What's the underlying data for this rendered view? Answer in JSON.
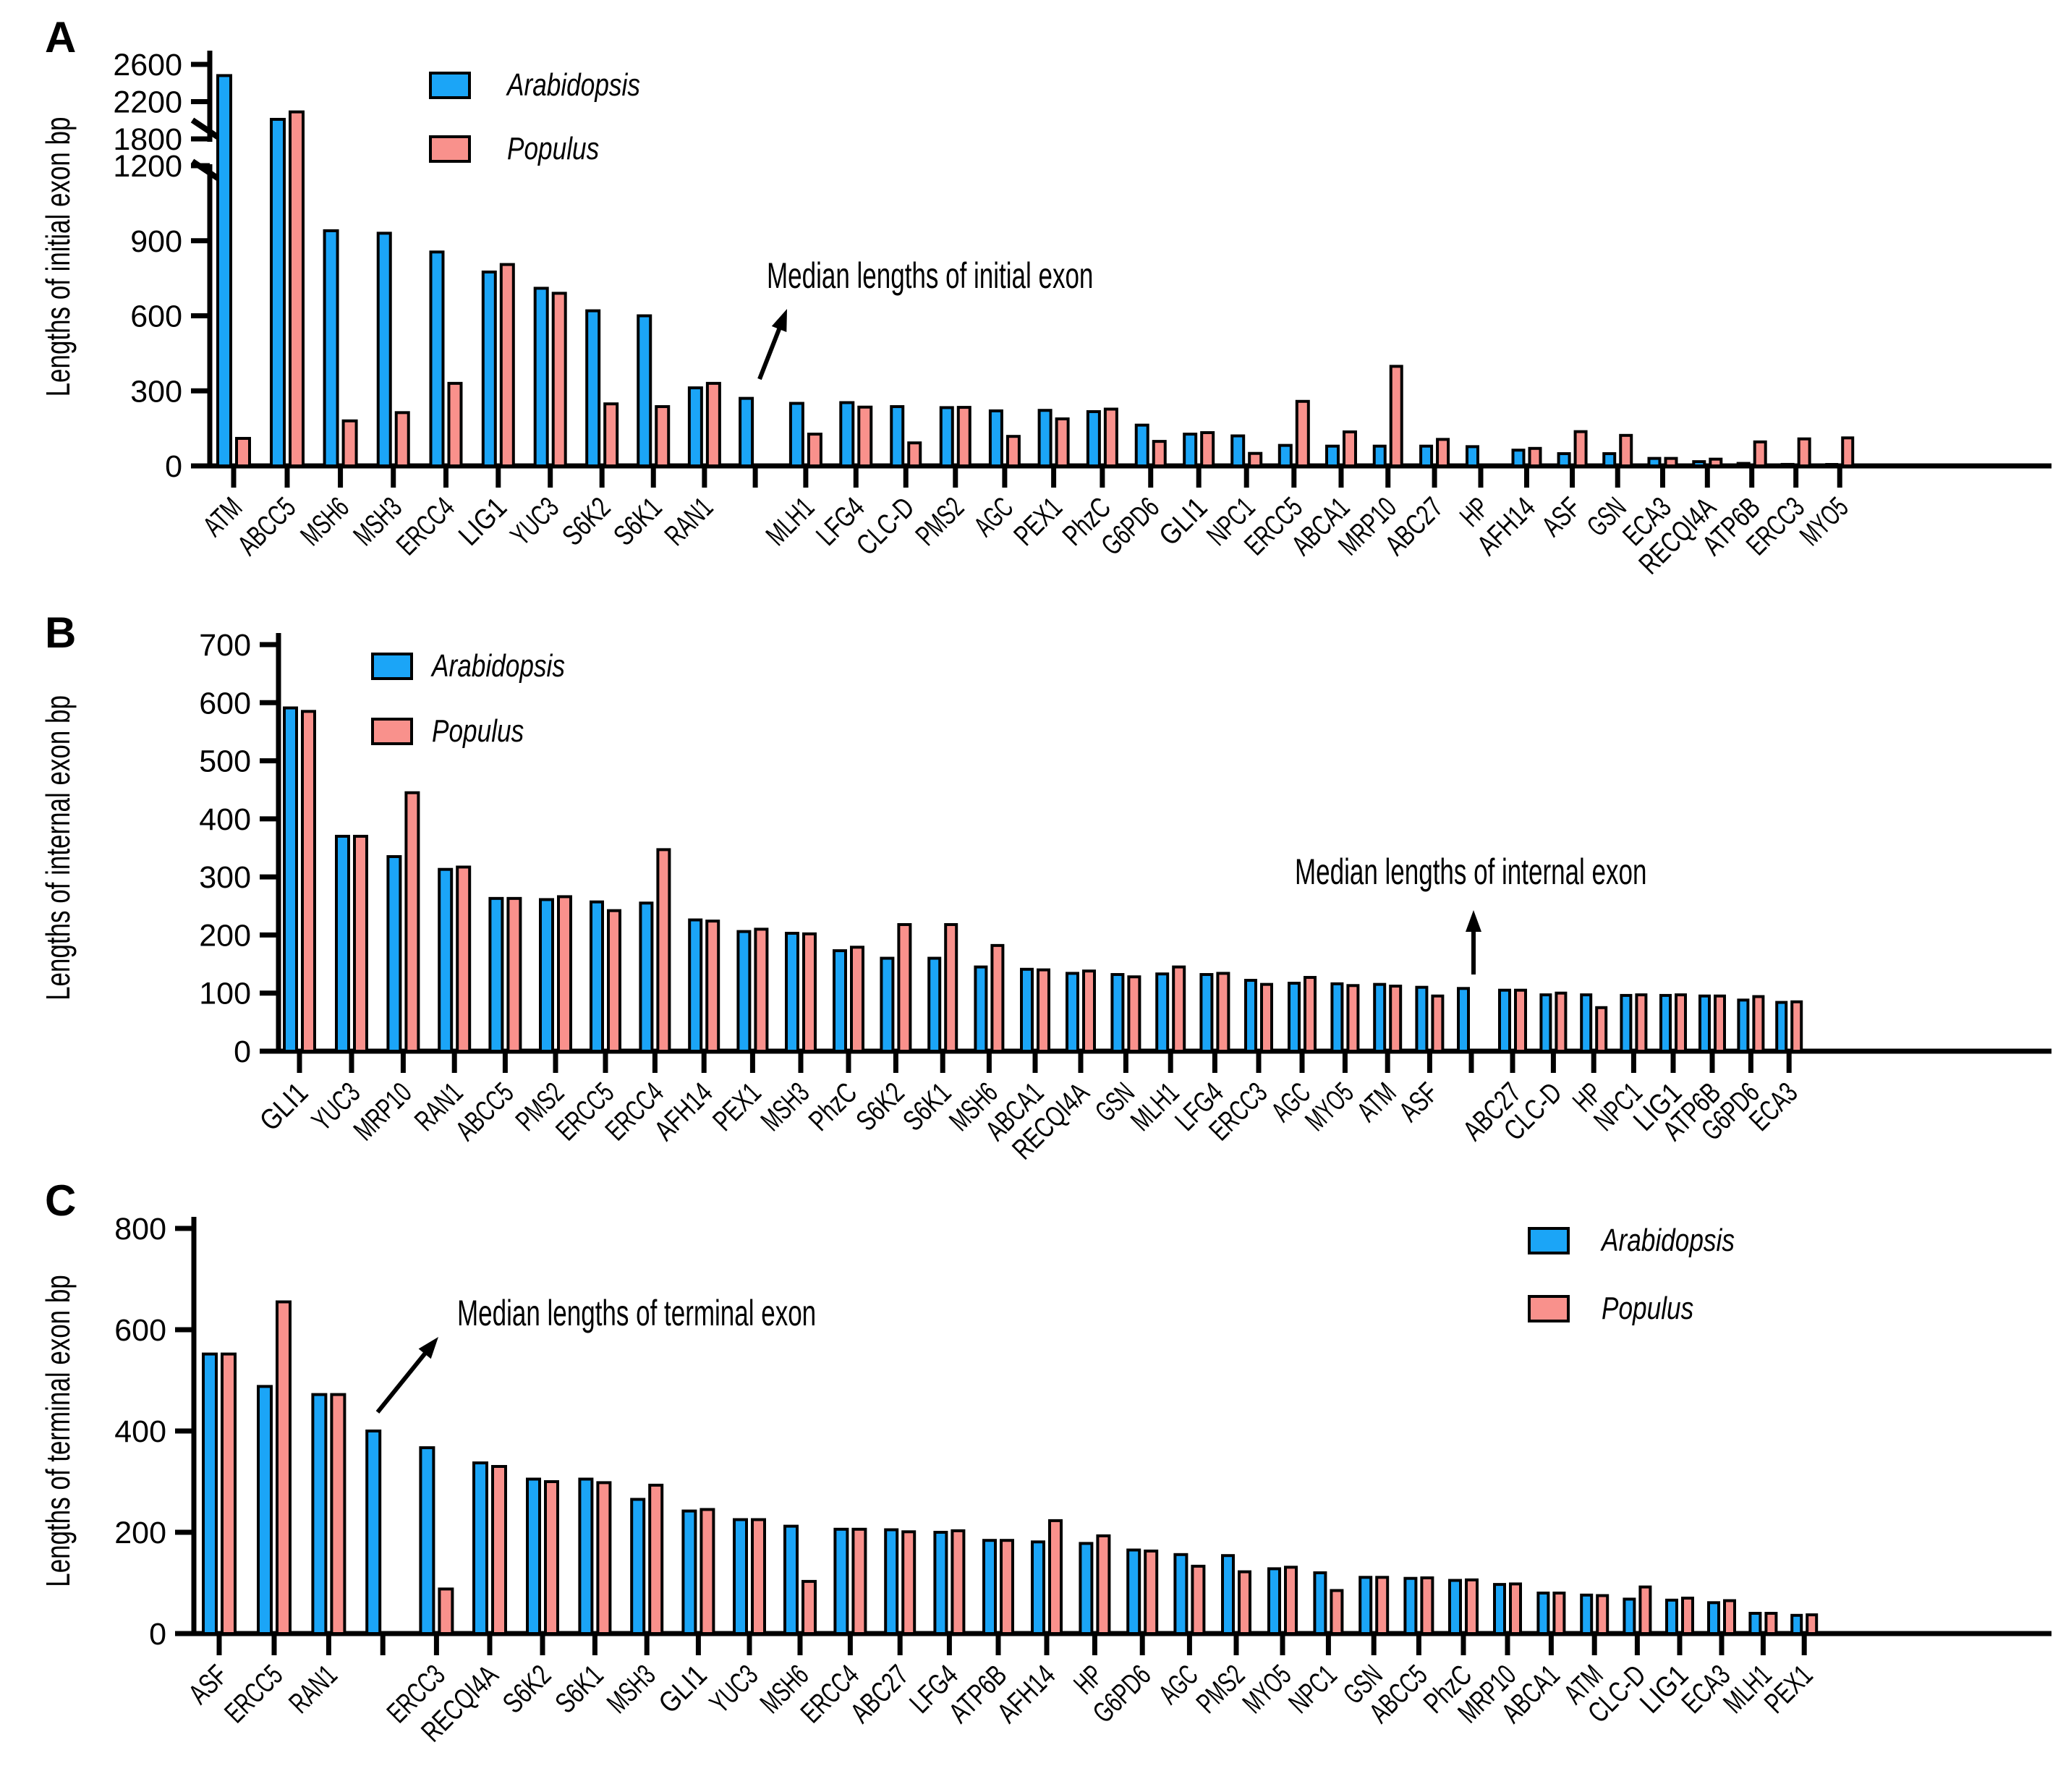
{
  "figure": {
    "species_colors": {
      "arabidopsis": "#1BA5F7",
      "populus": "#F9918C"
    },
    "legend": {
      "arabidopsis_label": "Arabidopsis",
      "populus_label": "Populus"
    }
  },
  "chart_data": [
    {
      "panel": "A",
      "type": "bar",
      "ylabel": "Lengths of initial exon bp",
      "annotation": "Median lengths of initial exon",
      "median_value": 270,
      "legend_position": "top-left",
      "y_axis": {
        "break": true,
        "lower_ticks": [
          0,
          300,
          600,
          900,
          1200
        ],
        "upper_ticks": [
          1800,
          2200,
          2600
        ],
        "ylim": [
          0,
          2600
        ]
      },
      "series_names": [
        "Arabidopsis",
        "Populus"
      ],
      "rows": [
        {
          "g": "ATM",
          "a": 2480,
          "p": 110
        },
        {
          "g": "ABCC5",
          "a": 2010,
          "p": 2090
        },
        {
          "g": "MSH6",
          "a": 940,
          "p": 180
        },
        {
          "g": "MSH3",
          "a": 930,
          "p": 213
        },
        {
          "g": "ERCC4",
          "a": 855,
          "p": 330
        },
        {
          "g": "LIG1",
          "a": 775,
          "p": 805
        },
        {
          "g": "YUC3",
          "a": 710,
          "p": 690
        },
        {
          "g": "S6K2",
          "a": 620,
          "p": 248
        },
        {
          "g": "S6K1",
          "a": 600,
          "p": 237
        },
        {
          "g": "RAN1",
          "a": 312,
          "p": 330
        },
        {
          "median": 270
        },
        {
          "g": "MLH1",
          "a": 250,
          "p": 127
        },
        {
          "g": "LFG4",
          "a": 253,
          "p": 235
        },
        {
          "g": "CLC-D",
          "a": 237,
          "p": 92
        },
        {
          "g": "PMS2",
          "a": 233,
          "p": 234
        },
        {
          "g": "AGC",
          "a": 220,
          "p": 118
        },
        {
          "g": "PEX1",
          "a": 222,
          "p": 188
        },
        {
          "g": "PhzC",
          "a": 217,
          "p": 227
        },
        {
          "g": "G6PD6",
          "a": 163,
          "p": 98
        },
        {
          "g": "GLI1",
          "a": 127,
          "p": 133
        },
        {
          "g": "NPC1",
          "a": 120,
          "p": 50
        },
        {
          "g": "ERCC5",
          "a": 82,
          "p": 258
        },
        {
          "g": "ABCA1",
          "a": 79,
          "p": 136
        },
        {
          "g": "MRP10",
          "a": 79,
          "p": 398
        },
        {
          "g": "ABC27",
          "a": 79,
          "p": 106
        },
        {
          "g": "HP",
          "a": 77,
          "p": 0
        },
        {
          "g": "AFH14",
          "a": 63,
          "p": 70
        },
        {
          "g": "ASF",
          "a": 49,
          "p": 137
        },
        {
          "g": "GSN",
          "a": 49,
          "p": 122
        },
        {
          "g": "ECA3",
          "a": 30,
          "p": 30
        },
        {
          "g": "RECQI4A",
          "a": 17,
          "p": 27
        },
        {
          "g": "ATP6B",
          "a": 10,
          "p": 96
        },
        {
          "g": "ERCC3",
          "a": 6,
          "p": 108
        },
        {
          "g": "MYO5",
          "a": 3,
          "p": 112
        }
      ]
    },
    {
      "panel": "B",
      "type": "bar",
      "ylabel": "Lengths of internal exon bp",
      "annotation": "Median lengths of internal exon",
      "median_value": 108,
      "legend_position": "top-left",
      "y_axis": {
        "break": false,
        "lower_ticks": [
          0,
          100,
          200,
          300,
          400,
          500,
          600,
          700
        ],
        "ylim": [
          0,
          700
        ]
      },
      "series_names": [
        "Arabidopsis",
        "Populus"
      ],
      "rows": [
        {
          "g": "GLI1",
          "a": 591,
          "p": 585
        },
        {
          "g": "YUC3",
          "a": 370,
          "p": 370
        },
        {
          "g": "MRP10",
          "a": 335,
          "p": 445
        },
        {
          "g": "RAN1",
          "a": 313,
          "p": 317
        },
        {
          "g": "ABCC5",
          "a": 263,
          "p": 263
        },
        {
          "g": "PMS2",
          "a": 261,
          "p": 266
        },
        {
          "g": "ERCC5",
          "a": 257,
          "p": 242
        },
        {
          "g": "ERCC4",
          "a": 255,
          "p": 347
        },
        {
          "g": "AFH14",
          "a": 226,
          "p": 224
        },
        {
          "g": "PEX1",
          "a": 206,
          "p": 210
        },
        {
          "g": "MSH3",
          "a": 203,
          "p": 202
        },
        {
          "g": "PhzC",
          "a": 173,
          "p": 179
        },
        {
          "g": "S6K2",
          "a": 160,
          "p": 218
        },
        {
          "g": "S6K1",
          "a": 160,
          "p": 218
        },
        {
          "g": "MSH6",
          "a": 145,
          "p": 182
        },
        {
          "g": "ABCA1",
          "a": 141,
          "p": 140
        },
        {
          "g": "RECQI4A",
          "a": 134,
          "p": 138
        },
        {
          "g": "GSN",
          "a": 132,
          "p": 128
        },
        {
          "g": "MLH1",
          "a": 133,
          "p": 145
        },
        {
          "g": "LFG4",
          "a": 132,
          "p": 134
        },
        {
          "g": "ERCC3",
          "a": 122,
          "p": 115
        },
        {
          "g": "AGC",
          "a": 117,
          "p": 127
        },
        {
          "g": "MYO5",
          "a": 116,
          "p": 113
        },
        {
          "g": "ATM",
          "a": 115,
          "p": 112
        },
        {
          "g": "ASF",
          "a": 110,
          "p": 95
        },
        {
          "median": 108
        },
        {
          "g": "ABC27",
          "a": 105,
          "p": 105
        },
        {
          "g": "CLC-D",
          "a": 97,
          "p": 100
        },
        {
          "g": "HP",
          "a": 97,
          "p": 75
        },
        {
          "g": "NPC1",
          "a": 96,
          "p": 97
        },
        {
          "g": "LIG1",
          "a": 96,
          "p": 97
        },
        {
          "g": "ATP6B",
          "a": 95,
          "p": 95
        },
        {
          "g": "G6PD6",
          "a": 88,
          "p": 94
        },
        {
          "g": "ECA3",
          "a": 84,
          "p": 85
        }
      ]
    },
    {
      "panel": "C",
      "type": "bar",
      "ylabel": "Lengths of terminal exon bp",
      "annotation": "Median lengths of terminal exon",
      "median_value": 400,
      "legend_position": "top-right",
      "y_axis": {
        "break": false,
        "lower_ticks": [
          0,
          200,
          400,
          600,
          800
        ],
        "ylim": [
          0,
          800
        ]
      },
      "series_names": [
        "Arabidopsis",
        "Populus"
      ],
      "rows": [
        {
          "g": "ASF",
          "a": 552,
          "p": 552
        },
        {
          "g": "ERCC5",
          "a": 488,
          "p": 655
        },
        {
          "g": "RAN1",
          "a": 472,
          "p": 472
        },
        {
          "median": 400
        },
        {
          "g": "ERCC3",
          "a": 367,
          "p": 88
        },
        {
          "g": "RECQI4A",
          "a": 337,
          "p": 330
        },
        {
          "g": "S6K2",
          "a": 305,
          "p": 300
        },
        {
          "g": "S6K1",
          "a": 305,
          "p": 298
        },
        {
          "g": "MSH3",
          "a": 265,
          "p": 293
        },
        {
          "g": "GLI1",
          "a": 242,
          "p": 245
        },
        {
          "g": "YUC3",
          "a": 225,
          "p": 225
        },
        {
          "g": "MSH6",
          "a": 212,
          "p": 103
        },
        {
          "g": "ERCC4",
          "a": 206,
          "p": 206
        },
        {
          "g": "ABC27",
          "a": 205,
          "p": 201
        },
        {
          "g": "LFG4",
          "a": 200,
          "p": 203
        },
        {
          "g": "ATP6B",
          "a": 184,
          "p": 184
        },
        {
          "g": "AFH14",
          "a": 181,
          "p": 223
        },
        {
          "g": "HP",
          "a": 178,
          "p": 193
        },
        {
          "g": "G6PD6",
          "a": 165,
          "p": 163
        },
        {
          "g": "AGC",
          "a": 156,
          "p": 133
        },
        {
          "g": "PMS2",
          "a": 154,
          "p": 122
        },
        {
          "g": "MYO5",
          "a": 128,
          "p": 131
        },
        {
          "g": "NPC1",
          "a": 120,
          "p": 85
        },
        {
          "g": "GSN",
          "a": 111,
          "p": 111
        },
        {
          "g": "ABCC5",
          "a": 109,
          "p": 110
        },
        {
          "g": "PhzC",
          "a": 105,
          "p": 106
        },
        {
          "g": "MRP10",
          "a": 97,
          "p": 98
        },
        {
          "g": "ABCA1",
          "a": 80,
          "p": 80
        },
        {
          "g": "ATM",
          "a": 76,
          "p": 75
        },
        {
          "g": "CLC-D",
          "a": 68,
          "p": 92
        },
        {
          "g": "LIG1",
          "a": 66,
          "p": 70
        },
        {
          "g": "ECA3",
          "a": 61,
          "p": 65
        },
        {
          "g": "MLH1",
          "a": 40,
          "p": 40
        },
        {
          "g": "PEX1",
          "a": 36,
          "p": 37
        }
      ]
    }
  ]
}
